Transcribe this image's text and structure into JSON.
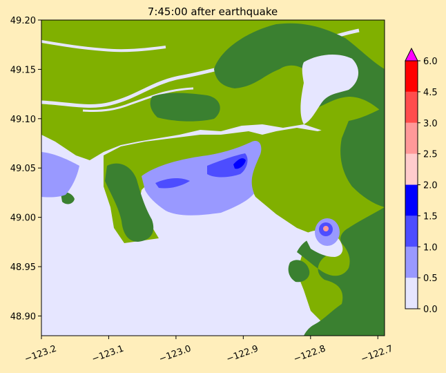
{
  "title": "7:45:00 after earthquake",
  "axes": {
    "x_ticks": [
      "−123.2",
      "−123.1",
      "−123.0",
      "−122.9",
      "−122.8",
      "−122.7"
    ],
    "y_ticks": [
      "49.20",
      "49.15",
      "49.10",
      "49.05",
      "49.00",
      "48.95",
      "48.90"
    ]
  },
  "colorbar": {
    "ticks": [
      "0.0",
      "0.5",
      "1.0",
      "1.5",
      "2.0",
      "2.5",
      "3.0",
      "4.5",
      "6.0"
    ],
    "colors": [
      "#e6e6ff",
      "#9999ff",
      "#4d4dff",
      "#0000ff",
      "#ffcccc",
      "#ff9999",
      "#ff4d4d",
      "#ff0000"
    ],
    "extend_color": "#ff00ff"
  },
  "map_colors": {
    "water": "#e6e6ff",
    "lowland": "#80b000",
    "upland": "#3a8030",
    "flood_light": "#9999ff",
    "flood_mid": "#4d4dff",
    "flood_deep": "#0000ff"
  },
  "chart_data": {
    "type": "heatmap",
    "title": "7:45:00 after earthquake",
    "xlim": [
      -123.2,
      -122.69
    ],
    "ylim": [
      48.88,
      49.2
    ],
    "colorbar_levels": [
      0.0,
      0.5,
      1.0,
      1.5,
      2.0,
      2.5,
      3.0,
      4.5,
      6.0
    ],
    "colorbar_extend": "max"
  }
}
